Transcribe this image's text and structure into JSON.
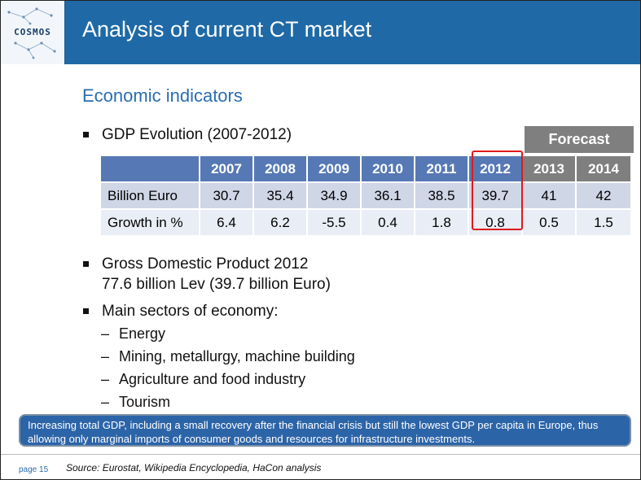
{
  "header": {
    "logo_text": "COSMOS",
    "title": "Analysis of current CT market"
  },
  "subtitle": "Economic indicators",
  "bullets": {
    "gdp_evolution": "GDP Evolution (2007-2012)",
    "gdp_2012_line1": "Gross Domestic Product 2012",
    "gdp_2012_line2": "77.6 billion Lev (39.7 billion Euro)",
    "sectors": "Main sectors of economy:"
  },
  "sectors": [
    "Energy",
    "Mining, metallurgy, machine building",
    "Agriculture and food industry",
    "Tourism"
  ],
  "forecast_label": "Forecast",
  "table": {
    "years": [
      "2007",
      "2008",
      "2009",
      "2010",
      "2011",
      "2012",
      "2013",
      "2014"
    ],
    "rows": [
      {
        "label": "Billion Euro",
        "values": [
          "30.7",
          "35.4",
          "34.9",
          "36.1",
          "38.5",
          "39.7",
          "41",
          "42"
        ]
      },
      {
        "label": "Growth in %",
        "values": [
          "6.4",
          "6.2",
          "-5.5",
          "0.4",
          "1.8",
          "0.8",
          "0.5",
          "1.5"
        ]
      }
    ]
  },
  "callout": "Increasing total GDP, including a small recovery after the financial crisis but still the lowest GDP per capita in Europe, thus allowing only marginal imports of consumer goods and resources for infrastructure investments.",
  "footer": {
    "page": "page 15",
    "source": "Source: Eurostat, Wikipedia Encyclopedia, HaCon analysis"
  },
  "colors": {
    "header_blue": "#1f6aa6",
    "table_header": "#5679b5",
    "forecast_gray": "#7f7f7f",
    "highlight_red": "#e01a1a"
  }
}
